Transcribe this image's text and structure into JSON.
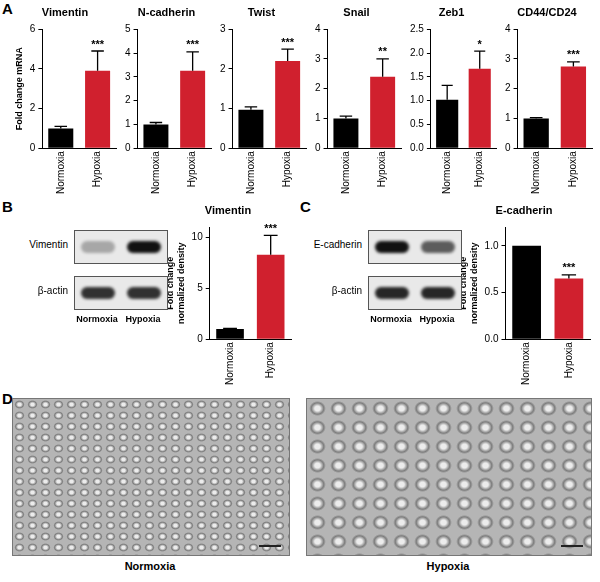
{
  "panel_labels": [
    "A",
    "B",
    "C",
    "D"
  ],
  "chart_data": [
    {
      "type": "bar",
      "panel": "A",
      "title": "Vimentin",
      "y_label": "Fold change mRNA",
      "categories": [
        "Normoxia",
        "Hypoxia"
      ],
      "values": [
        1.0,
        3.9
      ],
      "errors": [
        0.1,
        1.0
      ],
      "colors": [
        "#000000",
        "#d0202e"
      ],
      "ylim": [
        0,
        6
      ],
      "yticks": [
        0,
        2,
        4,
        6
      ],
      "grid": false,
      "annotations": [
        {
          "category": "Hypoxia",
          "text": "***"
        }
      ]
    },
    {
      "type": "bar",
      "panel": "A",
      "title": "N-cadherin",
      "categories": [
        "Normoxia",
        "Hypoxia"
      ],
      "values": [
        1.0,
        3.25
      ],
      "errors": [
        0.08,
        0.8
      ],
      "colors": [
        "#000000",
        "#d0202e"
      ],
      "ylim": [
        0,
        5
      ],
      "yticks": [
        0,
        1,
        2,
        3,
        4,
        5
      ],
      "grid": false,
      "annotations": [
        {
          "category": "Hypoxia",
          "text": "***"
        }
      ]
    },
    {
      "type": "bar",
      "panel": "A",
      "title": "Twist",
      "categories": [
        "Normoxia",
        "Hypoxia"
      ],
      "values": [
        0.97,
        2.2
      ],
      "errors": [
        0.07,
        0.3
      ],
      "colors": [
        "#000000",
        "#d0202e"
      ],
      "ylim": [
        0,
        3
      ],
      "yticks": [
        0,
        1,
        2,
        3
      ],
      "grid": false,
      "annotations": [
        {
          "category": "Hypoxia",
          "text": "***"
        }
      ]
    },
    {
      "type": "bar",
      "panel": "A",
      "title": "Snail",
      "categories": [
        "Normoxia",
        "Hypoxia"
      ],
      "values": [
        1.0,
        2.4
      ],
      "errors": [
        0.08,
        0.6
      ],
      "colors": [
        "#000000",
        "#d0202e"
      ],
      "ylim": [
        0,
        4
      ],
      "yticks": [
        0,
        1,
        2,
        3,
        4
      ],
      "grid": false,
      "annotations": [
        {
          "category": "Hypoxia",
          "text": "**"
        }
      ]
    },
    {
      "type": "bar",
      "panel": "A",
      "title": "Zeb1",
      "categories": [
        "Normoxia",
        "Hypoxia"
      ],
      "values": [
        1.02,
        1.67
      ],
      "errors": [
        0.3,
        0.37
      ],
      "colors": [
        "#000000",
        "#d0202e"
      ],
      "ylim": [
        0,
        2.5
      ],
      "yticks": [
        {
          "value": 0,
          "label": "0.0"
        },
        0.5,
        {
          "value": 1,
          "label": "1.0"
        },
        1.5,
        {
          "value": 2,
          "label": "2.0"
        },
        2.5
      ],
      "grid": false,
      "annotations": [
        {
          "category": "Hypoxia",
          "text": "*"
        }
      ]
    },
    {
      "type": "bar",
      "panel": "A",
      "title": "CD44/CD24",
      "categories": [
        "Normoxia",
        "Hypoxia"
      ],
      "values": [
        1.0,
        2.75
      ],
      "errors": [
        0.03,
        0.15
      ],
      "colors": [
        "#000000",
        "#d0202e"
      ],
      "ylim": [
        0,
        4
      ],
      "yticks": [
        0,
        1,
        2,
        3,
        4
      ],
      "grid": false,
      "annotations": [
        {
          "category": "Hypoxia",
          "text": "***"
        }
      ]
    },
    {
      "type": "bar",
      "panel": "B",
      "title": "Vimentin",
      "y_label": "Fold change normalized density",
      "categories": [
        "Normoxia",
        "Hypoxia"
      ],
      "values": [
        1.0,
        8.3
      ],
      "errors": [
        0.05,
        1.9
      ],
      "colors": [
        "#000000",
        "#d0202e"
      ],
      "ylim": [
        0,
        11
      ],
      "yticks": [
        0,
        5,
        10
      ],
      "grid": false,
      "annotations": [
        {
          "category": "Hypoxia",
          "text": "***"
        }
      ]
    },
    {
      "type": "bar",
      "panel": "C",
      "title": "E-cadherin",
      "y_label": "Fold change normalized density",
      "categories": [
        "Normoxia",
        "Hypoxia"
      ],
      "values": [
        1.0,
        0.65
      ],
      "errors": [
        0,
        0.04
      ],
      "colors": [
        "#000000",
        "#d0202e"
      ],
      "ylim": [
        0,
        1.2
      ],
      "yticks": [
        {
          "value": 0,
          "label": "0.0"
        },
        0.5,
        {
          "value": 1,
          "label": "1.0"
        }
      ],
      "grid": false,
      "annotations": [
        {
          "category": "Hypoxia",
          "text": "***"
        }
      ]
    }
  ],
  "blots": [
    {
      "panel": "B",
      "bands": [
        "Vimentin",
        "β-actin"
      ],
      "lanes": [
        "Normoxia",
        "Hypoxia"
      ]
    },
    {
      "panel": "C",
      "bands": [
        "E-cadherin",
        "β-actin"
      ],
      "lanes": [
        "Normoxia",
        "Hypoxia"
      ]
    }
  ],
  "micrographs": {
    "panel": "D",
    "images": [
      "Normoxia",
      "Hypoxia"
    ]
  }
}
